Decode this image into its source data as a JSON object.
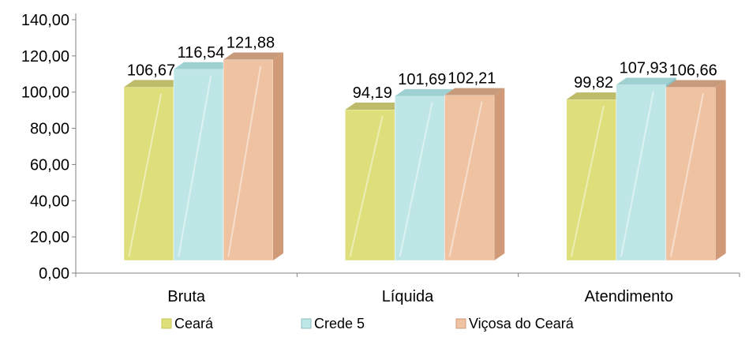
{
  "chart_data": {
    "type": "bar",
    "categories": [
      "Bruta",
      "Líquida",
      "Atendimento"
    ],
    "series": [
      {
        "name": "Ceará",
        "values": [
          106.67,
          94.19,
          99.82
        ],
        "value_labels": [
          "106,67",
          "94,19",
          "99,82"
        ],
        "color": "#dede7a",
        "side_color": "#c8c85a",
        "top_color": "#bcbc6a"
      },
      {
        "name": "Crede 5",
        "values": [
          116.54,
          101.69,
          107.93
        ],
        "value_labels": [
          "116,54",
          "101,69",
          "107,93"
        ],
        "color": "#bfe6e6",
        "side_color": "#8cc2c4",
        "top_color": "#9fd0d2"
      },
      {
        "name": "Viçosa do Ceará",
        "values": [
          121.88,
          102.21,
          106.66
        ],
        "value_labels": [
          "121,88",
          "102,21",
          "106,66"
        ],
        "color": "#efc3a2",
        "side_color": "#d09a78",
        "top_color": "#c89a7c"
      }
    ],
    "y_ticks": [
      "0,00",
      "20,00",
      "40,00",
      "60,00",
      "80,00",
      "100,00",
      "120,00",
      "140,00"
    ],
    "ylim": [
      0,
      140
    ],
    "legend_position": "bottom",
    "grid": false,
    "title": "",
    "xlabel": "",
    "ylabel": ""
  }
}
